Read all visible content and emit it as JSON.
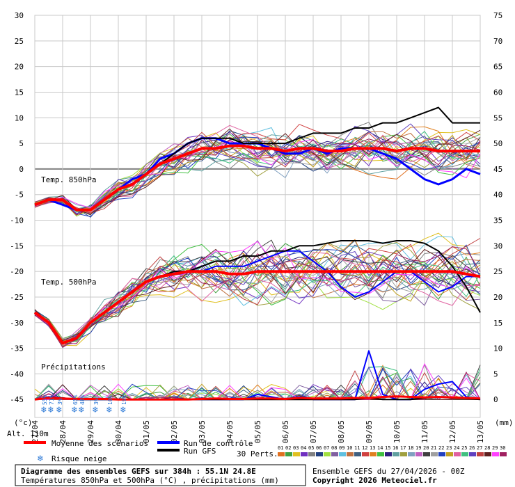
{
  "chart_data": {
    "type": "line",
    "left_axis": {
      "ticks": [
        "30",
        "25",
        "20",
        "15",
        "10",
        "5",
        "0",
        "-5",
        "-10",
        "-15",
        "-20",
        "-25",
        "-30",
        "-35",
        "-40",
        "-45"
      ],
      "unit": "(°c)"
    },
    "right_axis": {
      "ticks": [
        "75",
        "70",
        "65",
        "60",
        "55",
        "50",
        "45",
        "40",
        "35",
        "30",
        "25",
        "20",
        "15",
        "10",
        "5",
        "0"
      ],
      "unit": "(mm)"
    },
    "dates": [
      "27/04",
      "28/04",
      "29/04",
      "30/04",
      "01/05",
      "02/05",
      "03/05",
      "04/05",
      "05/05",
      "06/05",
      "07/05",
      "08/05",
      "09/05",
      "10/05",
      "11/05",
      "12/05",
      "13/05"
    ],
    "altitude": "Alt. 110m",
    "panels": {
      "t850": "Temp. 850hPa",
      "t500": "Temp. 500hPa",
      "precip": "Précipitations"
    },
    "snow_risk": [
      "55%",
      "71%",
      "3%",
      "65%",
      "48%",
      "3%",
      "10%",
      "19%"
    ],
    "mean_t850": [
      -7,
      -6,
      -6,
      -8,
      -8,
      -6,
      -4,
      -3,
      -1,
      1,
      2,
      3,
      4,
      4,
      4.5,
      4.5,
      4,
      4,
      3.5,
      4,
      4,
      3.5,
      3.5,
      4,
      4,
      4,
      3.5,
      4,
      4,
      3.5,
      3.5,
      3.5,
      3.5
    ],
    "control_t850": [
      -7,
      -6,
      -7,
      -8,
      -8,
      -6,
      -4,
      -2,
      -1,
      2,
      3,
      5,
      6,
      6,
      5,
      5,
      5,
      4,
      3,
      3,
      4,
      3,
      4,
      4,
      4,
      3,
      2,
      0,
      -2,
      -3,
      -2,
      0,
      -1
    ],
    "gfs_t850": [
      -7,
      -6,
      -6,
      -8,
      -8,
      -6,
      -4,
      -3,
      -1,
      1,
      3,
      5,
      6,
      6,
      6,
      5,
      5,
      5,
      5,
      6,
      7,
      7,
      7,
      8,
      8,
      9,
      9,
      10,
      11,
      12,
      9,
      9,
      9
    ],
    "mean_t500": [
      -28,
      -30,
      -34,
      -33,
      -30,
      -28,
      -26,
      -24,
      -22,
      -21,
      -20.5,
      -20,
      -20,
      -20,
      -20.5,
      -20.5,
      -20,
      -20,
      -20,
      -20,
      -20,
      -20,
      -20,
      -20,
      -20,
      -20,
      -20,
      -20,
      -20,
      -20,
      -20,
      -20.5,
      -21
    ],
    "control_t500": [
      -28,
      -30,
      -34,
      -33,
      -30,
      -28,
      -26,
      -24,
      -22,
      -21,
      -20,
      -20,
      -20,
      -19,
      -19,
      -19,
      -18,
      -17,
      -16,
      -16,
      -18,
      -20,
      -23,
      -25,
      -24,
      -22,
      -20,
      -20,
      -22,
      -24,
      -23,
      -21,
      -21
    ],
    "gfs_t500": [
      -28,
      -30,
      -34,
      -33,
      -30,
      -28,
      -26,
      -24,
      -22,
      -21,
      -20,
      -20,
      -19,
      -18,
      -18,
      -17,
      -17,
      -16,
      -16,
      -15,
      -15,
      -14.5,
      -14,
      -14,
      -14,
      -14.5,
      -14,
      -14,
      -14.5,
      -16,
      -19,
      -23,
      -28
    ],
    "mean_precip": [
      0,
      0.3,
      0.2,
      0.1,
      0.1,
      0.1,
      0,
      0,
      0,
      0,
      0,
      0,
      0.1,
      0.2,
      0.1,
      0.1,
      0.2,
      0.2,
      0.1,
      0.3,
      0.2,
      0.2,
      0.2,
      0.3,
      0.3,
      0.5,
      0.6,
      0.5,
      0.4,
      0.5,
      0.4,
      0.3,
      0.2
    ],
    "control_precip": [
      0,
      0.5,
      0.3,
      0,
      0,
      0,
      0,
      0,
      0,
      0,
      0,
      0,
      0,
      0,
      0,
      0,
      1,
      0.5,
      0,
      0.5,
      0,
      0,
      0,
      0,
      9.5,
      1,
      0,
      0,
      2,
      3,
      3.5,
      0.5,
      0
    ],
    "gfs_precip": [
      0,
      0.4,
      0.3,
      0,
      0,
      0,
      0,
      0,
      0,
      0,
      0,
      0,
      0,
      0,
      0,
      0,
      0,
      0,
      0,
      0,
      0,
      0,
      0,
      0,
      0.3,
      0,
      0,
      0,
      0.3,
      0.5,
      0.3,
      0.2,
      0
    ]
  },
  "legend": {
    "mean": "Moyenne des scénarios",
    "control": "Run de contrôle",
    "gfs": "Run GFS",
    "snow": "Risque neige",
    "perts": "30 Perts.",
    "pert_numbers": [
      "01",
      "02",
      "03",
      "04",
      "05",
      "06",
      "07",
      "08",
      "09",
      "10",
      "11",
      "12",
      "13",
      "14",
      "15",
      "16",
      "17",
      "18",
      "19",
      "20",
      "21",
      "22",
      "23",
      "24",
      "25",
      "26",
      "27",
      "28",
      "29",
      "30"
    ],
    "pert_colors": [
      "#e07020",
      "#40a040",
      "#e0c020",
      "#7030c0",
      "#808080",
      "#204080",
      "#a0e040",
      "#8060a0",
      "#60c0e0",
      "#c07040",
      "#406080",
      "#d04040",
      "#e08020",
      "#40c040",
      "#302080",
      "#60a0a0",
      "#a0a040",
      "#80a0c0",
      "#c060c0",
      "#404040",
      "#a0a0a0",
      "#2040c0",
      "#c0a020",
      "#e060a0",
      "#40c080",
      "#6040c0",
      "#c04040",
      "#602020",
      "#ff40ff",
      "#a02060"
    ]
  },
  "footer": {
    "title": "Diagramme des ensembles GEFS sur 384h : 55.1N 24.8E",
    "subtitle": "Températures 850hPa et 500hPa (°C) , précipitations (mm)",
    "run": "Ensemble GEFS du 27/04/2026 - 00Z",
    "copyright": "Copyright 2026 Meteociel.fr"
  },
  "colors": {
    "mean": "#ff0000",
    "control": "#0000ff",
    "gfs": "#000000",
    "grid": "#c8c8c8",
    "zero_line": "#808080",
    "snow": "#2a78d6"
  }
}
